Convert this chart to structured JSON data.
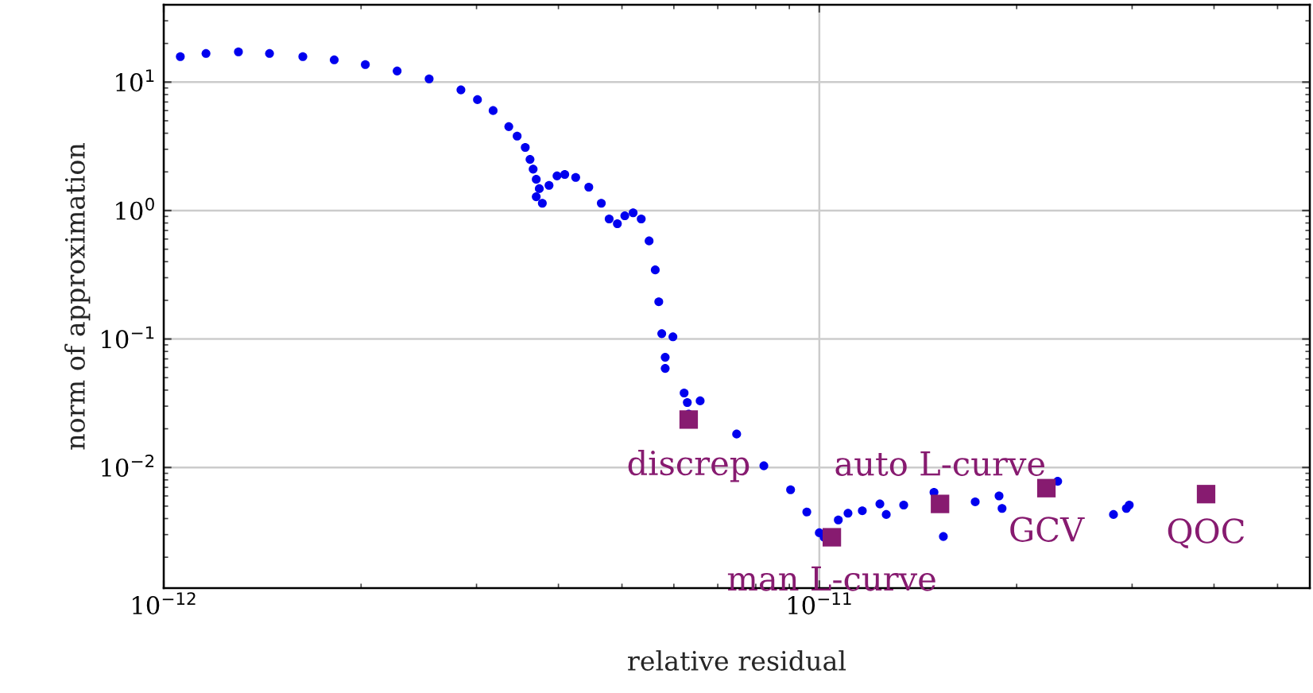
{
  "chart_data": {
    "type": "scatter",
    "xlabel": "relative residual",
    "ylabel": "norm of approximation",
    "log": "xy",
    "grid": true,
    "xlim": [
      1e-12,
      5.6e-11
    ],
    "ylim": [
      0.00115,
      40
    ],
    "xticks": [
      {
        "value": 1e-12,
        "label": "10$^{−12}$"
      },
      {
        "value": 1e-11,
        "label": "10$^{−11}$"
      }
    ],
    "yticks": [
      {
        "value": 0.01,
        "label": "10$^{−2}$"
      },
      {
        "value": 0.1,
        "label": "10$^{−1}$"
      },
      {
        "value": 1,
        "label": "10$^{0}$"
      },
      {
        "value": 10,
        "label": "10$^{1}$"
      }
    ],
    "series": [
      {
        "color": "#0000ee",
        "marker": "circle",
        "x": [
          1.06e-12,
          1.16e-12,
          1.3e-12,
          1.45e-12,
          1.63e-12,
          1.82e-12,
          2.03e-12,
          2.27e-12,
          2.54e-12,
          2.84e-12,
          3.01e-12,
          3.18e-12,
          3.36e-12,
          3.46e-12,
          3.56e-12,
          3.62e-12,
          3.66e-12,
          3.7e-12,
          3.74e-12,
          3.7e-12,
          3.78e-12,
          3.87e-12,
          3.98e-12,
          4.09e-12,
          4.25e-12,
          4.45e-12,
          4.65e-12,
          4.78e-12,
          4.92e-12,
          5.05e-12,
          5.2e-12,
          5.35e-12,
          5.5e-12,
          5.62e-12,
          5.69e-12,
          5.75e-12,
          5.82e-12,
          5.82e-12,
          5.98e-12,
          6.22e-12,
          6.29e-12,
          6.32e-12,
          6.58e-12,
          7.48e-12,
          8.23e-12,
          9.04e-12,
          9.57e-12,
          1e-11,
          1.017e-11,
          1.069e-11,
          1.106e-11,
          1.163e-11,
          1.237e-11,
          1.265e-11,
          1.345e-11,
          1.496e-11,
          1.546e-11,
          1.729e-11,
          1.88e-11,
          1.9e-11,
          2.31e-11,
          2.81e-11,
          2.94e-11,
          2.97e-11
        ],
        "values": [
          15.8,
          16.7,
          17.2,
          16.7,
          15.8,
          14.9,
          13.7,
          12.2,
          10.6,
          8.7,
          7.3,
          6.0,
          4.5,
          3.8,
          3.1,
          2.5,
          2.1,
          1.75,
          1.48,
          1.28,
          1.14,
          1.57,
          1.86,
          1.91,
          1.81,
          1.52,
          1.14,
          0.86,
          0.79,
          0.91,
          0.96,
          0.86,
          0.58,
          0.345,
          0.195,
          0.11,
          0.072,
          0.059,
          0.104,
          0.038,
          0.032,
          0.026,
          0.033,
          0.0182,
          0.0103,
          0.0067,
          0.0045,
          0.0031,
          0.00286,
          0.0039,
          0.0044,
          0.0046,
          0.0052,
          0.0043,
          0.0051,
          0.0064,
          0.0029,
          0.0054,
          0.006,
          0.0048,
          0.0078,
          0.0043,
          0.0048,
          0.0051
        ]
      },
      {
        "color": "#871b70",
        "marker": "square",
        "x": [
          6.32e-12,
          1.045e-11,
          1.528e-11,
          2.22e-11,
          3.89e-11
        ],
        "values": [
          0.0236,
          0.00286,
          0.0052,
          0.0069,
          0.0062
        ]
      }
    ],
    "annotations": [
      {
        "text": "discrep",
        "x": 6.32e-12,
        "y": 0.0236
      },
      {
        "text": "man L-curve",
        "x": 1.045e-11,
        "y": 0.00286
      },
      {
        "text": "auto L-curve",
        "x": 1.528e-11,
        "y": 0.0052
      },
      {
        "text": "GCV",
        "x": 2.22e-11,
        "y": 0.0069
      },
      {
        "text": "QOC",
        "x": 3.89e-11,
        "y": 0.0062
      }
    ]
  }
}
